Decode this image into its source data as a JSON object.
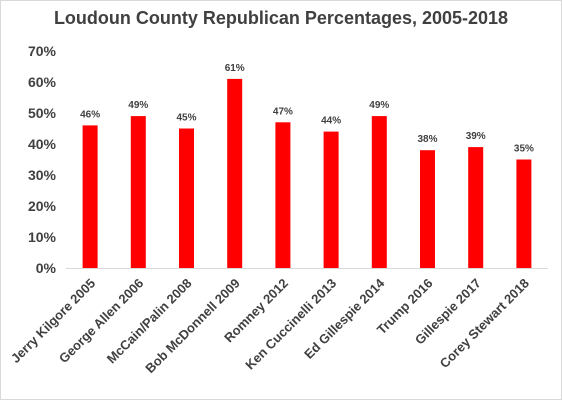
{
  "chart_data": {
    "type": "bar",
    "title": "Loudoun County Republican Percentages, 2005-2018",
    "xlabel": "",
    "ylabel": "",
    "categories": [
      "Jerry Kilgore 2005",
      "George Allen 2006",
      "McCain/Palin 2008",
      "Bob McDonnell 2009",
      "Romney 2012",
      "Ken Cuccinelli 2013",
      "Ed Gillespie 2014",
      "Trump 2016",
      "Gillespie 2017",
      "Corey Stewart 2018"
    ],
    "values": [
      46,
      49,
      45,
      61,
      47,
      44,
      49,
      38,
      39,
      35
    ],
    "data_labels": [
      "46%",
      "49%",
      "45%",
      "61%",
      "47%",
      "44%",
      "49%",
      "38%",
      "39%",
      "35%"
    ],
    "ylim": [
      0,
      70
    ],
    "yticks": [
      "0%",
      "10%",
      "20%",
      "30%",
      "40%",
      "50%",
      "60%",
      "70%"
    ],
    "grid": false,
    "legend": "none",
    "bar_color": "#ff0000",
    "text_color": "#404040",
    "axis_color": "#d9d9d9"
  }
}
